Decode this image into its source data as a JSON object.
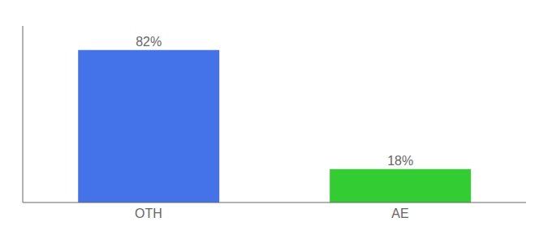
{
  "chart_data": {
    "type": "bar",
    "categories": [
      "OTH",
      "AE"
    ],
    "values": [
      82,
      18
    ],
    "value_labels": [
      "82%",
      "18%"
    ],
    "colors": [
      "#4472e8",
      "#33cc33"
    ],
    "ylim": [
      0,
      95
    ],
    "data_labels": true,
    "tick_labels": "x",
    "grid": false
  }
}
